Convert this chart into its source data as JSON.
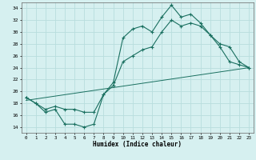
{
  "xlabel": "Humidex (Indice chaleur)",
  "bg_color": "#d6f0f0",
  "grid_color": "#b8dede",
  "line_color": "#1a7060",
  "xlim": [
    -0.5,
    23.5
  ],
  "ylim": [
    13,
    35
  ],
  "yticks": [
    14,
    16,
    18,
    20,
    22,
    24,
    26,
    28,
    30,
    32,
    34
  ],
  "xticks": [
    0,
    1,
    2,
    3,
    4,
    5,
    6,
    7,
    8,
    9,
    10,
    11,
    12,
    13,
    14,
    15,
    16,
    17,
    18,
    19,
    20,
    21,
    22,
    23
  ],
  "line1_x": [
    0,
    1,
    2,
    3,
    4,
    5,
    6,
    7,
    8,
    9,
    10,
    11,
    12,
    13,
    14,
    15,
    16,
    17,
    18,
    19,
    20,
    21,
    22,
    23
  ],
  "line1_y": [
    19,
    18,
    16.5,
    17,
    14.5,
    14.5,
    14,
    14.5,
    19.5,
    21.5,
    29,
    30.5,
    31,
    30,
    32.5,
    34.5,
    32.5,
    33,
    31.5,
    29.5,
    27.5,
    25,
    24.5,
    24
  ],
  "line2_x": [
    0,
    1,
    2,
    3,
    4,
    5,
    6,
    7,
    8,
    9,
    10,
    11,
    12,
    13,
    14,
    15,
    16,
    17,
    18,
    19,
    20,
    21,
    22,
    23
  ],
  "line2_y": [
    19,
    18,
    17,
    17.5,
    17,
    17,
    16.5,
    16.5,
    19.5,
    21,
    25,
    26,
    27,
    27.5,
    30,
    32,
    31,
    31.5,
    31,
    29.5,
    28,
    27.5,
    25,
    24
  ],
  "line3_x": [
    0,
    23
  ],
  "line3_y": [
    18.5,
    24
  ]
}
